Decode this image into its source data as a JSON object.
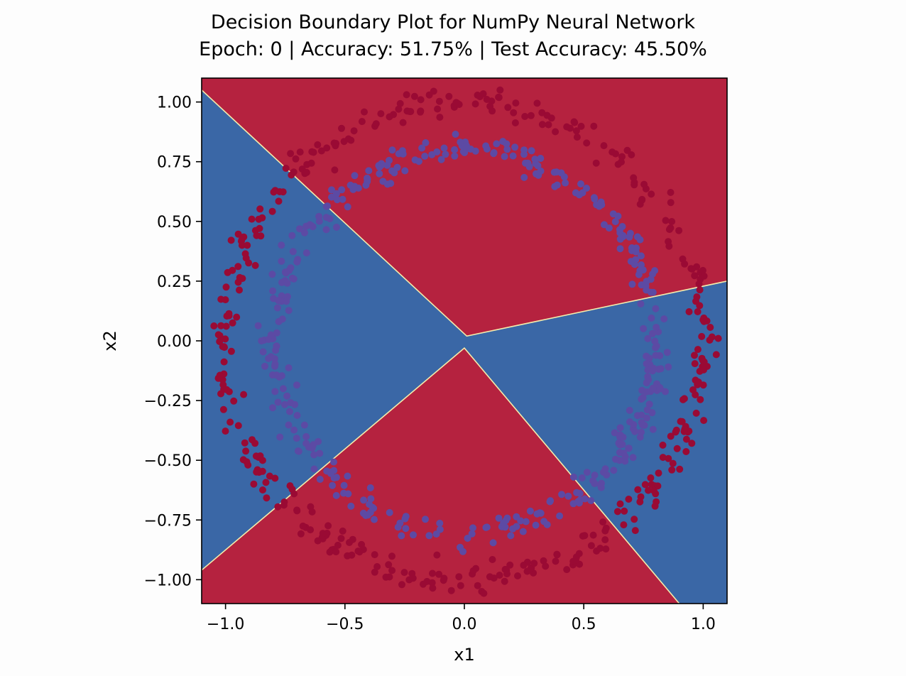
{
  "chart_data": {
    "type": "scatter",
    "title_lines": [
      "Decision Boundary Plot for NumPy Neural Network",
      "Epoch: 0 | Accuracy: 51.75% | Test Accuracy: 45.50%"
    ],
    "xlabel": "x1",
    "ylabel": "x2",
    "xlim": [
      -1.1,
      1.1
    ],
    "ylim": [
      -1.1,
      1.1
    ],
    "x_ticks": [
      -1.0,
      -0.5,
      0.0,
      0.5,
      1.0
    ],
    "x_tick_labels": [
      "−1.0",
      "−0.5",
      "0.0",
      "0.5",
      "1.0"
    ],
    "y_ticks": [
      1.0,
      0.75,
      0.5,
      0.25,
      0.0,
      -0.25,
      -0.5,
      -0.75,
      -1.0
    ],
    "y_tick_labels": [
      "1.00",
      "0.75",
      "0.50",
      "0.25",
      "0.00",
      "−0.25",
      "−0.50",
      "−0.75",
      "−1.00"
    ],
    "grid": false,
    "legend": "none",
    "colors": {
      "region_class0": "#b5223f",
      "region_class1": "#3a67a6",
      "boundary": "#f4ecac",
      "points_outer": "#9a0a34",
      "points_inner": "#5c4aa4"
    },
    "decision_regions": [
      {
        "class": 0,
        "polygon": [
          [
            -1.1,
            1.1
          ],
          [
            -1.1,
            1.05
          ],
          [
            0.01,
            0.02
          ],
          [
            1.1,
            0.25
          ],
          [
            1.1,
            1.1
          ]
        ]
      },
      {
        "class": 1,
        "polygon": [
          [
            -1.1,
            1.05
          ],
          [
            0.01,
            0.02
          ],
          [
            1.1,
            0.25
          ],
          [
            1.1,
            -1.1
          ],
          [
            0.9,
            -1.1
          ],
          [
            0.0,
            -0.03
          ],
          [
            -1.1,
            -0.96
          ]
        ]
      },
      {
        "class": 0,
        "polygon": [
          [
            -1.1,
            -0.96
          ],
          [
            0.0,
            -0.03
          ],
          [
            0.9,
            -1.1
          ],
          [
            -1.1,
            -1.1
          ]
        ]
      }
    ],
    "series": [
      {
        "class": 0,
        "radius": 1.0,
        "noise": 0.03,
        "count": 400
      },
      {
        "class": 1,
        "radius": 0.8,
        "noise": 0.03,
        "count": 400
      }
    ]
  }
}
